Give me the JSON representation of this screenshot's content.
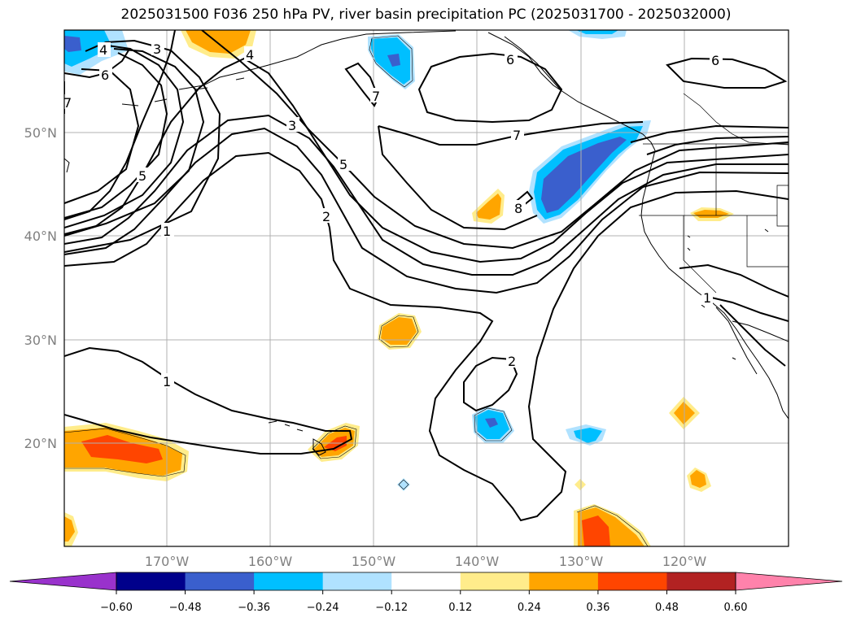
{
  "title": "2025031500 F036 250 hPa PV, river basin precipitation PC (2025031700 - 2025032000)",
  "lat_labels": [
    "50°N",
    "40°N",
    "30°N",
    "20°N"
  ],
  "lon_labels": [
    "170°W",
    "160°W",
    "150°W",
    "140°W",
    "130°W",
    "120°W"
  ],
  "colorbar": {
    "ticks": [
      "−0.60",
      "−0.48",
      "−0.36",
      "−0.24",
      "−0.12",
      "0.12",
      "0.24",
      "0.36",
      "0.48",
      "0.60"
    ],
    "colors": [
      "#9932cc",
      "#00008b",
      "#3a5fcd",
      "#00bfff",
      "#b0e2ff",
      "#ffffff",
      "#ffec8b",
      "#ffa500",
      "#ff4500",
      "#b22222",
      "#ff82ab"
    ]
  },
  "contour_labels": [
    "4",
    "3",
    "4",
    "6",
    "7",
    "6",
    "6",
    "7",
    "3",
    "5",
    "5",
    "2",
    "1",
    "7",
    "8",
    "1",
    "2",
    "1"
  ]
}
